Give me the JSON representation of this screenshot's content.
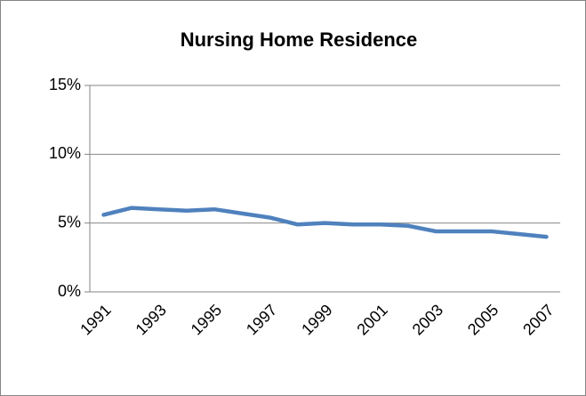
{
  "chart_data": {
    "type": "line",
    "title": "Nursing Home Residence",
    "categories": [
      "1991",
      null,
      "1993",
      null,
      "1995",
      null,
      "1997",
      null,
      "1999",
      null,
      "2001",
      null,
      "2003",
      null,
      "2005",
      null,
      "2007"
    ],
    "series": [
      {
        "name": "Nursing Home Residence",
        "color": "#4f81bd",
        "values": [
          5.6,
          6.1,
          6.0,
          5.9,
          6.0,
          5.7,
          5.4,
          4.9,
          5.0,
          4.9,
          4.9,
          4.8,
          4.4,
          4.4,
          4.4,
          4.2,
          4.0
        ]
      }
    ],
    "ylim": [
      0,
      15
    ],
    "yticks": [
      {
        "value": 0,
        "label": "0%"
      },
      {
        "value": 5,
        "label": "5%"
      },
      {
        "value": 10,
        "label": "10%"
      },
      {
        "value": 15,
        "label": "15%"
      }
    ],
    "grid": true
  }
}
